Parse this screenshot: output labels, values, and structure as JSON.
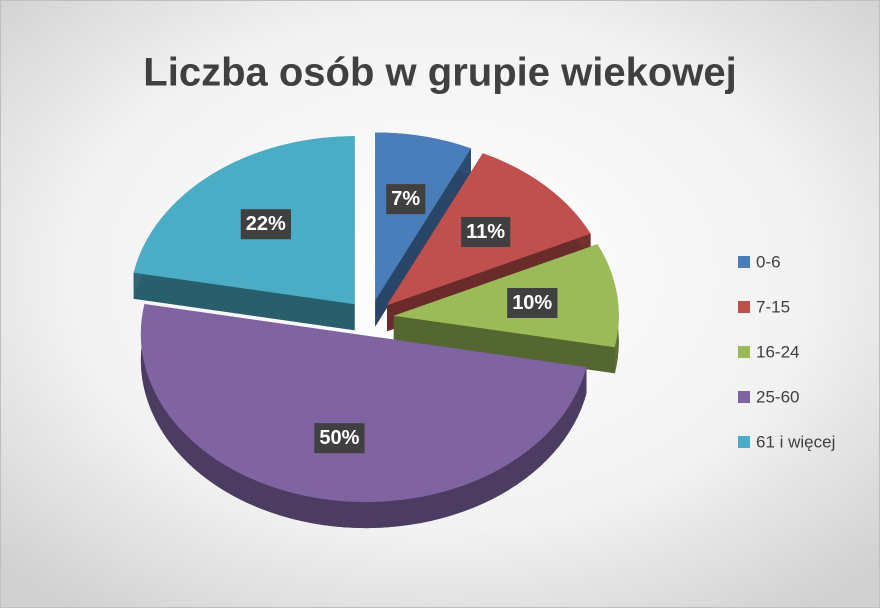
{
  "chart_data": {
    "type": "pie",
    "title": "Liczba osób w grupie wiekowej",
    "categories": [
      "0-6",
      "7-15",
      "16-24",
      "25-60",
      "61 i więcej"
    ],
    "values": [
      7,
      11,
      10,
      50,
      22
    ],
    "value_labels": [
      "7%",
      "11%",
      "10%",
      "50%",
      "22%"
    ],
    "colors": [
      "#4a7ebb",
      "#c0504d",
      "#9bbb59",
      "#8064a2",
      "#4bacc6"
    ],
    "legend": "right"
  }
}
